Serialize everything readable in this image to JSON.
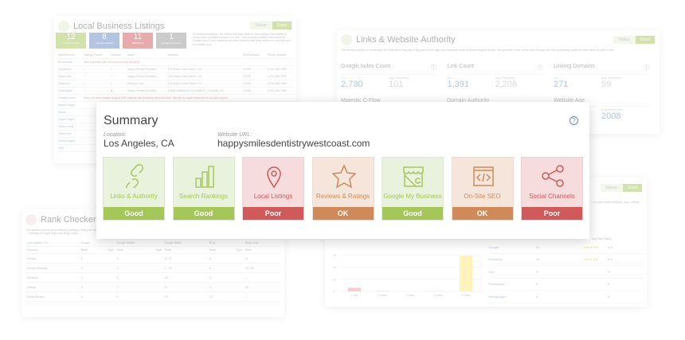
{
  "summary": {
    "title": "Summary",
    "location_label": "Location:",
    "location": "Los Angeles, CA",
    "url_label": "Website URL:",
    "url": "happysmilesdentistrywestcoast.com",
    "tiles": [
      {
        "name": "Links & Authority",
        "status": "Good",
        "icon": "link-icon"
      },
      {
        "name": "Search Rankings",
        "status": "Good",
        "icon": "bar-chart-icon"
      },
      {
        "name": "Local Listings",
        "status": "Poor",
        "icon": "map-pin-icon"
      },
      {
        "name": "Reviews & Ratings",
        "status": "OK",
        "icon": "star-icon"
      },
      {
        "name": "Google My Business",
        "status": "Good",
        "icon": "storefront-icon"
      },
      {
        "name": "On-Site SEO",
        "status": "OK",
        "icon": "code-window-icon"
      },
      {
        "name": "Social Channels",
        "status": "Poor",
        "icon": "share-icon"
      }
    ],
    "colors": {
      "Good": "#a5c75a",
      "OK": "#d08a5a",
      "Poor": "#d05a5a",
      "Good_bg": "#e8f2dc",
      "OK_bg": "#f6e5da",
      "Poor_bg": "#f6dcdc"
    }
  },
  "status_label": "Status:",
  "status_good": "Good",
  "links": {
    "title": "Links & Website Authority",
    "desc": "This section reports on some key SEO indicators that play a big part in how high your business ranks in search engine results. We generate some of this data through our own proprietary systems; other data we pull in from.",
    "you": "You",
    "avg": "Avg. Competitor",
    "metrics": [
      {
        "name": "Google Index Count",
        "you": "2,730",
        "avg": "101"
      },
      {
        "name": "Link Count",
        "you": "1,391",
        "avg": "2,206"
      },
      {
        "name": "Linking Domains",
        "you": "271",
        "avg": "59"
      }
    ],
    "row2": [
      "Majestic C-Flow",
      "Domain Authority",
      "Website Age"
    ],
    "reg_label": "Registration Date",
    "reg": "2008"
  },
  "listings": {
    "title": "Local Business Listings",
    "stats": [
      {
        "n": "12",
        "l": "Listings Found"
      },
      {
        "n": "8",
        "l": "Listings Claimed"
      },
      {
        "n": "11",
        "l": "NAP Errors"
      },
      {
        "n": "1",
        "l": "Listings Not Found"
      }
    ],
    "desc": "For local businesses, it's critical that their address and contact information is correct and consistent across the web. This provides reliable information to Google about your business and also ensures that your customers can find you on contact you.",
    "headers": [
      "Site/Directory",
      "Listings Found",
      "Claimed",
      "Name",
      "Address",
      "Zip/Postcode",
      "Phone Number"
    ],
    "rows": [
      [
        "Brownbook",
        "Your business was not found on this directory",
        "",
        "",
        "",
        "",
        ""
      ],
      [
        "Citysearch",
        "✔",
        "✔",
        "Happy Smiles Dentistry",
        "123 West Coast Street, CA",
        "12345",
        "(123) 456-7890"
      ],
      [
        "Dexknows",
        "✔",
        "✔",
        "Happy Smiles Dentistry",
        "123 West Coast Street, CA",
        "12345",
        "(123) 456-7890"
      ],
      [
        "Facebook",
        "✔",
        "✔",
        "Dadome Law",
        "123 West Coast Street, CA",
        "12345",
        "(123) 456-7890"
      ],
      [
        "FourSquare",
        "✔",
        "✘",
        "Happy Smiles Dentistry",
        "13836 Ballantyne Corporate Pl, Charlotte, NC",
        "12345",
        "(123) 456-7890"
      ],
      [
        "Google Local",
        "Sorry we were unable to grab NAP data for this directory when we tried. We will try again when we re-run your report.",
        "",
        "",
        "",
        "",
        ""
      ],
      [
        "Insider Pages",
        "",
        "",
        "",
        "",
        "",
        ""
      ],
      [
        "Kudzu",
        "",
        "",
        "",
        "",
        "",
        ""
      ],
      [
        "Super Pages",
        "",
        "",
        "",
        "",
        "",
        ""
      ],
      [
        "Yahoo Local",
        "",
        "",
        "",
        "",
        "",
        ""
      ],
      [
        "Yellow Bot",
        "",
        "",
        "",
        "",
        "",
        ""
      ],
      [
        "Yellow Pages",
        "",
        "",
        "",
        "",
        "",
        ""
      ],
      [
        "Yelp",
        "",
        "",
        "",
        "",
        "",
        ""
      ]
    ]
  },
  "rank": {
    "title": "Rank Checker",
    "desc": "This section reports the positions ('rankings') that your website ... offerings (Google Maps and Bing Local).",
    "location": "Los Angeles, CA",
    "engines": [
      "Google",
      "Google Mobile",
      "Google Maps",
      "Bing",
      "Bing Local"
    ],
    "keyword_header": "Keyword",
    "rank_header": "Rank",
    "type_header": "Type",
    "rows": [
      [
        "Dentist",
        "1",
        "1",
        "6 / 27",
        "5",
        "37"
      ],
      [
        "Dental Cleaning",
        "3",
        "3",
        "1 / 33",
        "6",
        "13 / 48"
      ],
      [
        "Dentures",
        "2",
        "5",
        "36",
        "3",
        "--"
      ],
      [
        "Fillings",
        "5",
        "7",
        "27",
        "2",
        "28"
      ],
      [
        "Dental Braces",
        "8",
        "9",
        "23",
        "12",
        "--"
      ]
    ]
  },
  "reviews": {
    "desc": "...en your total reviews, avg. rating",
    "rating_header": "Avg Star Rating",
    "sites": [
      {
        "name": "Google",
        "count": "30",
        "stars": "★★★★★",
        "rating": "4.8"
      },
      {
        "name": "Facebook",
        "count": "49",
        "stars": "★★★★★",
        "rating": "4.5"
      },
      {
        "name": "Yelp",
        "count": "0",
        "stars": "",
        "rating": "0"
      },
      {
        "name": "Foursquare",
        "count": "0",
        "stars": "",
        "rating": "0"
      },
      {
        "name": "Yellowpages",
        "count": "0",
        "stars": "",
        "rating": "0"
      }
    ]
  },
  "chart_data": {
    "type": "bar",
    "categories": [
      "1 Star",
      "2 Stars",
      "3 Stars",
      "4 Stars",
      "5 Stars"
    ],
    "values": [
      6,
      1,
      0,
      1,
      59
    ],
    "ylim": [
      0,
      80
    ],
    "yticks": [
      "0",
      "20",
      "40",
      "60"
    ],
    "colors": [
      "#e8a0a0",
      "#f6c8a8",
      "#f6d8a8",
      "#f6e08a",
      "#ffe97a"
    ]
  }
}
